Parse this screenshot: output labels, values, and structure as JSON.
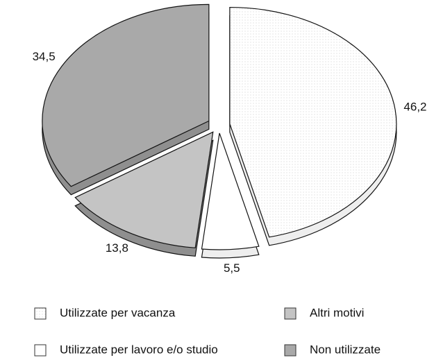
{
  "chart_data": {
    "type": "pie",
    "categories": [
      "Utilizzate per vacanza",
      "Utilizzate per lavoro e/o studio",
      "Altri motivi",
      "Non utilizzate"
    ],
    "values": [
      46.2,
      5.5,
      13.8,
      34.5
    ],
    "value_labels": [
      "46,2",
      "5,5",
      "13,8",
      "34,5"
    ],
    "colors": [
      "url(#dots)",
      "#ffffff",
      "#c4c4c4",
      "#a9a9a9"
    ]
  }
}
